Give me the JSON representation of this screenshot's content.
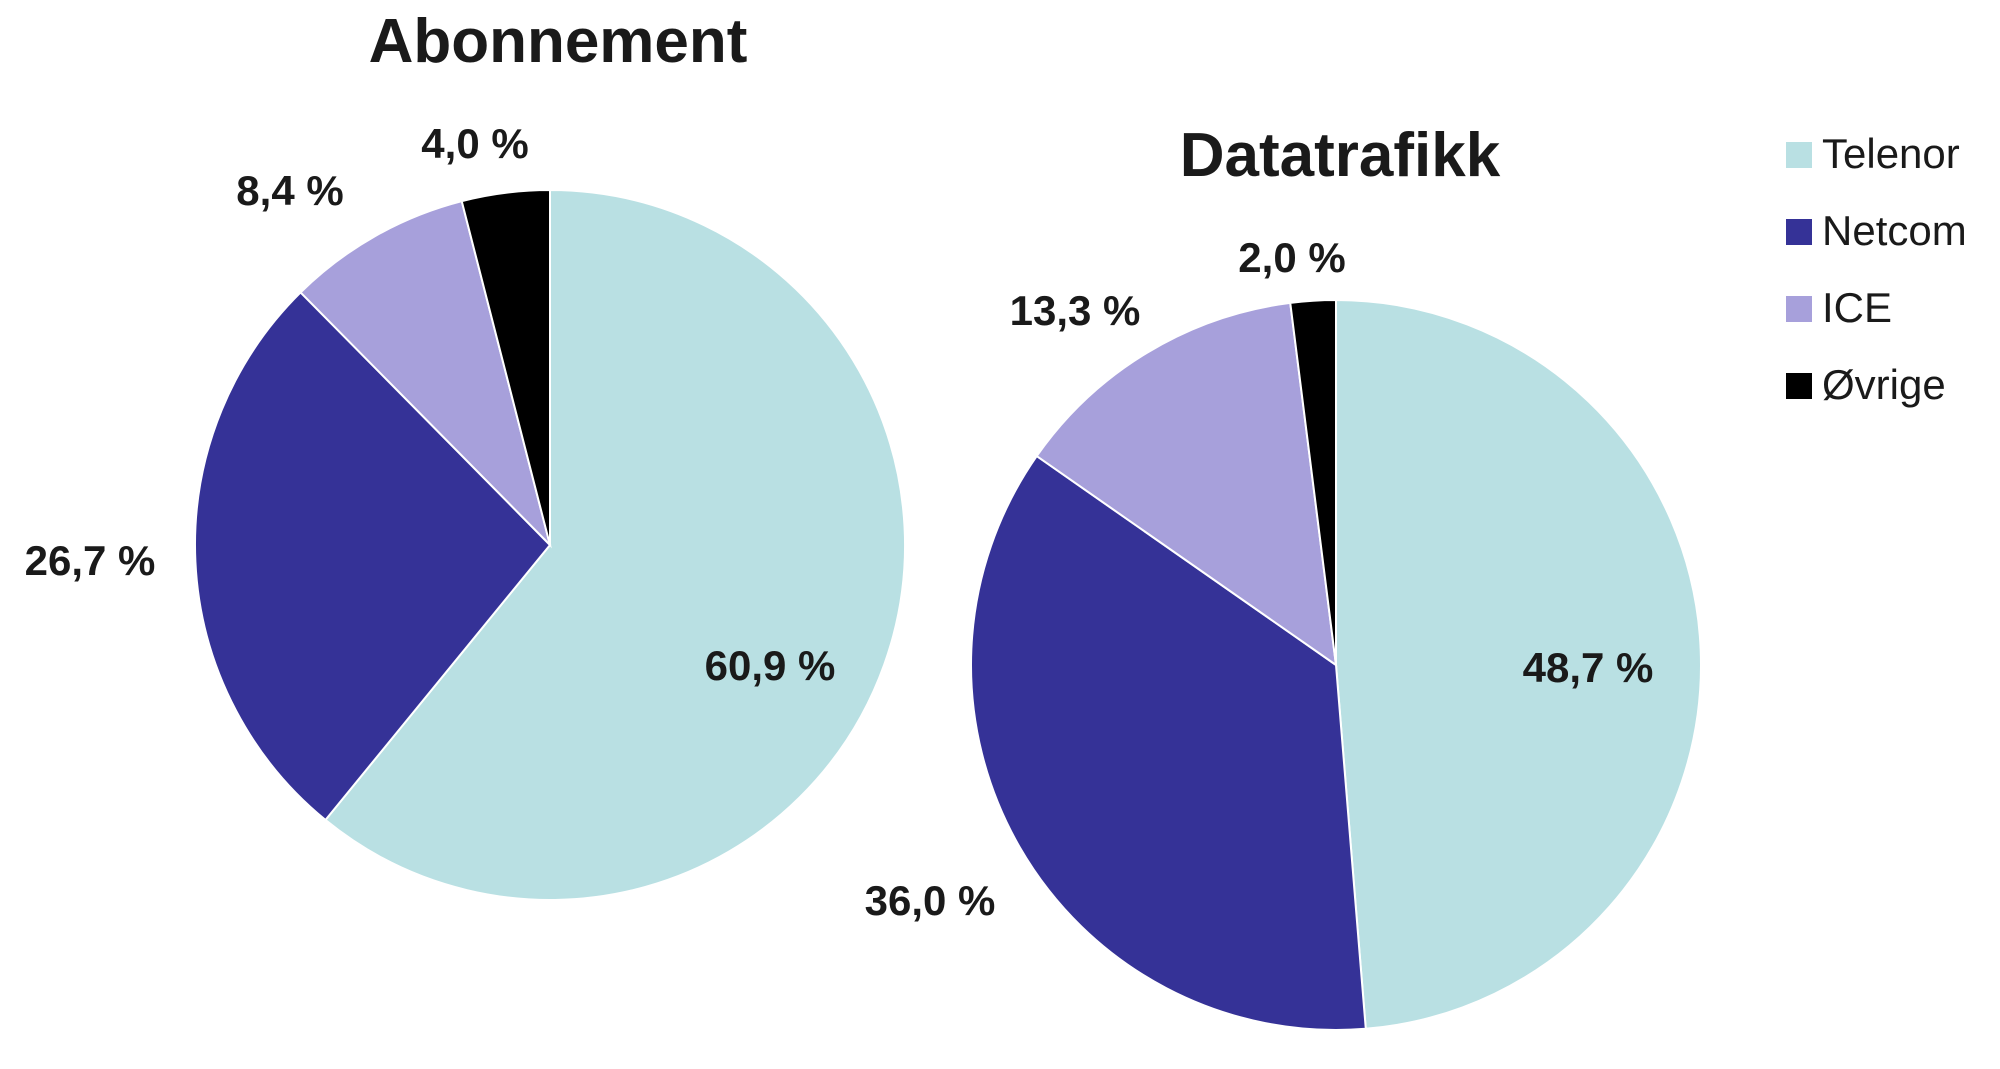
{
  "chart_data": [
    {
      "type": "pie",
      "title": "Abonnement",
      "categories": [
        "Telenor",
        "Netcom",
        "ICE",
        "Øvrige"
      ],
      "values": [
        60.9,
        26.7,
        8.4,
        4.0
      ],
      "value_labels": [
        "60,9 %",
        "26,7 %",
        "8,4 %",
        "4,0 %"
      ],
      "colors": [
        "#b9e0e3",
        "#353297",
        "#a7a0db",
        "#000000"
      ]
    },
    {
      "type": "pie",
      "title": "Datatrafikk",
      "categories": [
        "Telenor",
        "Netcom",
        "ICE",
        "Øvrige"
      ],
      "values": [
        48.7,
        36.0,
        13.3,
        2.0
      ],
      "value_labels": [
        "48,7 %",
        "36,0 %",
        "13,3 %",
        "2,0 %"
      ],
      "colors": [
        "#b9e0e3",
        "#353297",
        "#a7a0db",
        "#000000"
      ]
    }
  ],
  "legend": {
    "placement": "right",
    "items": [
      {
        "label": "Telenor",
        "color": "#b9e0e3"
      },
      {
        "label": "Netcom",
        "color": "#353297"
      },
      {
        "label": "ICE",
        "color": "#a7a0db"
      },
      {
        "label": "Øvrige",
        "color": "#000000"
      }
    ]
  }
}
